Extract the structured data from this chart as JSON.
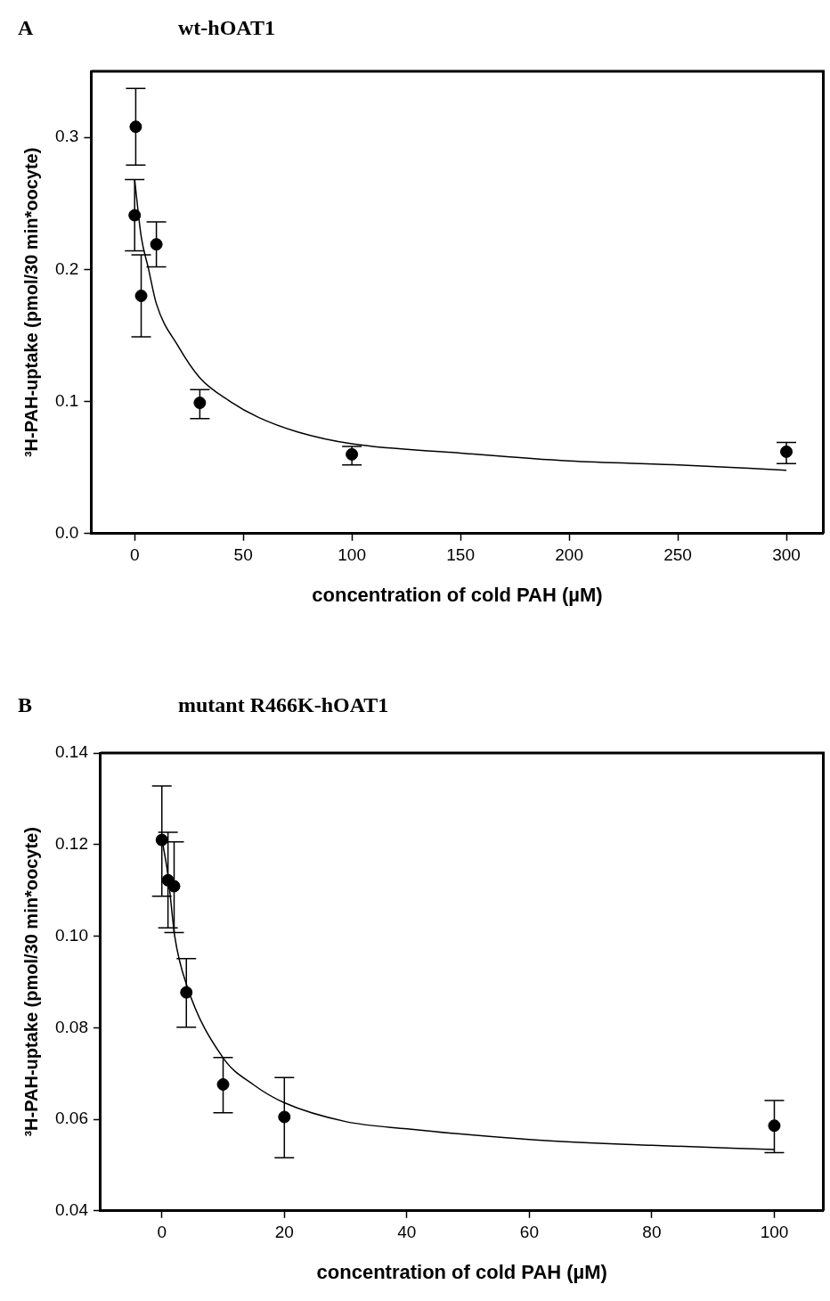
{
  "chart_data": [
    {
      "type": "scatter",
      "title": "wt-hOAT1",
      "annotations": [
        "A"
      ],
      "xlabel": "concentration of cold PAH (µM)",
      "ylabel": "³H-PAH-uptake (pmol/30 min*oocyte)",
      "xlim": [
        -20,
        317
      ],
      "ylim": [
        0,
        0.35
      ],
      "xticks": [
        0,
        50,
        100,
        150,
        200,
        250,
        300
      ],
      "yticks": [
        {
          "value": 0,
          "label": "0.0"
        },
        0.1,
        0.2,
        0.3
      ],
      "grid": false,
      "legend": false,
      "marker": "circle",
      "series": [
        {
          "color": "#000000",
          "x": [
            0.5,
            0,
            3,
            10,
            30,
            100,
            300
          ],
          "values": [
            0.308,
            0.241,
            0.18,
            0.219,
            0.099,
            0.06,
            0.062
          ],
          "errors": [
            [
              0.279,
              0.337
            ],
            [
              0.214,
              0.268
            ],
            [
              0.149,
              0.211
            ],
            [
              0.202,
              0.236
            ],
            [
              0.087,
              0.109
            ],
            [
              0.052,
              0.066
            ],
            [
              0.053,
              0.069
            ]
          ]
        },
        {
          "type": "line",
          "color": "#000000",
          "marker": "none",
          "line_style": "solid",
          "x": [
            0,
            3,
            6.3,
            10,
            20,
            30,
            44,
            57,
            75,
            100,
            150,
            200,
            250,
            300
          ],
          "values": [
            0.268,
            0.225,
            0.201,
            0.174,
            0.142,
            0.118,
            0.1,
            0.088,
            0.077,
            0.068,
            0.061,
            0.055,
            0.052,
            0.048
          ]
        }
      ]
    },
    {
      "type": "scatter",
      "title": "mutant R466K-hOAT1",
      "annotations": [
        "B"
      ],
      "xlabel": "concentration of cold PAH (µM)",
      "ylabel": "³H-PAH-uptake (pmol/30 min*oocyte)",
      "xlim": [
        -10,
        108
      ],
      "ylim": [
        0.04,
        0.14
      ],
      "xticks": [
        0,
        20,
        40,
        60,
        80,
        100
      ],
      "yticks": [
        0.04,
        0.06,
        0.08,
        {
          "value": 0.1,
          "label": "0.10"
        },
        0.12,
        0.14
      ],
      "grid": false,
      "legend": false,
      "marker": "circle",
      "series": [
        {
          "color": "#000000",
          "x": [
            0,
            1,
            2,
            4,
            10,
            20,
            100
          ],
          "values": [
            0.121,
            0.1122,
            0.1109,
            0.0877,
            0.0676,
            0.0605,
            0.0586
          ],
          "errors": [
            [
              0.1087,
              0.1328
            ],
            [
              0.1018,
              0.1227
            ],
            [
              0.1008,
              0.1206
            ],
            [
              0.0801,
              0.0951
            ],
            [
              0.0614,
              0.0735
            ],
            [
              0.0516,
              0.0691
            ],
            [
              0.0527,
              0.0641
            ]
          ]
        },
        {
          "type": "line",
          "color": "#000000",
          "marker": "none",
          "line_style": "solid",
          "x": [
            0,
            1,
            2.1,
            4,
            10,
            15,
            20,
            30,
            40,
            60,
            80,
            100
          ],
          "values": [
            0.1213,
            0.1133,
            0.1,
            0.0895,
            0.0734,
            0.0675,
            0.0636,
            0.0595,
            0.0579,
            0.0556,
            0.0543,
            0.0534
          ]
        }
      ]
    }
  ]
}
